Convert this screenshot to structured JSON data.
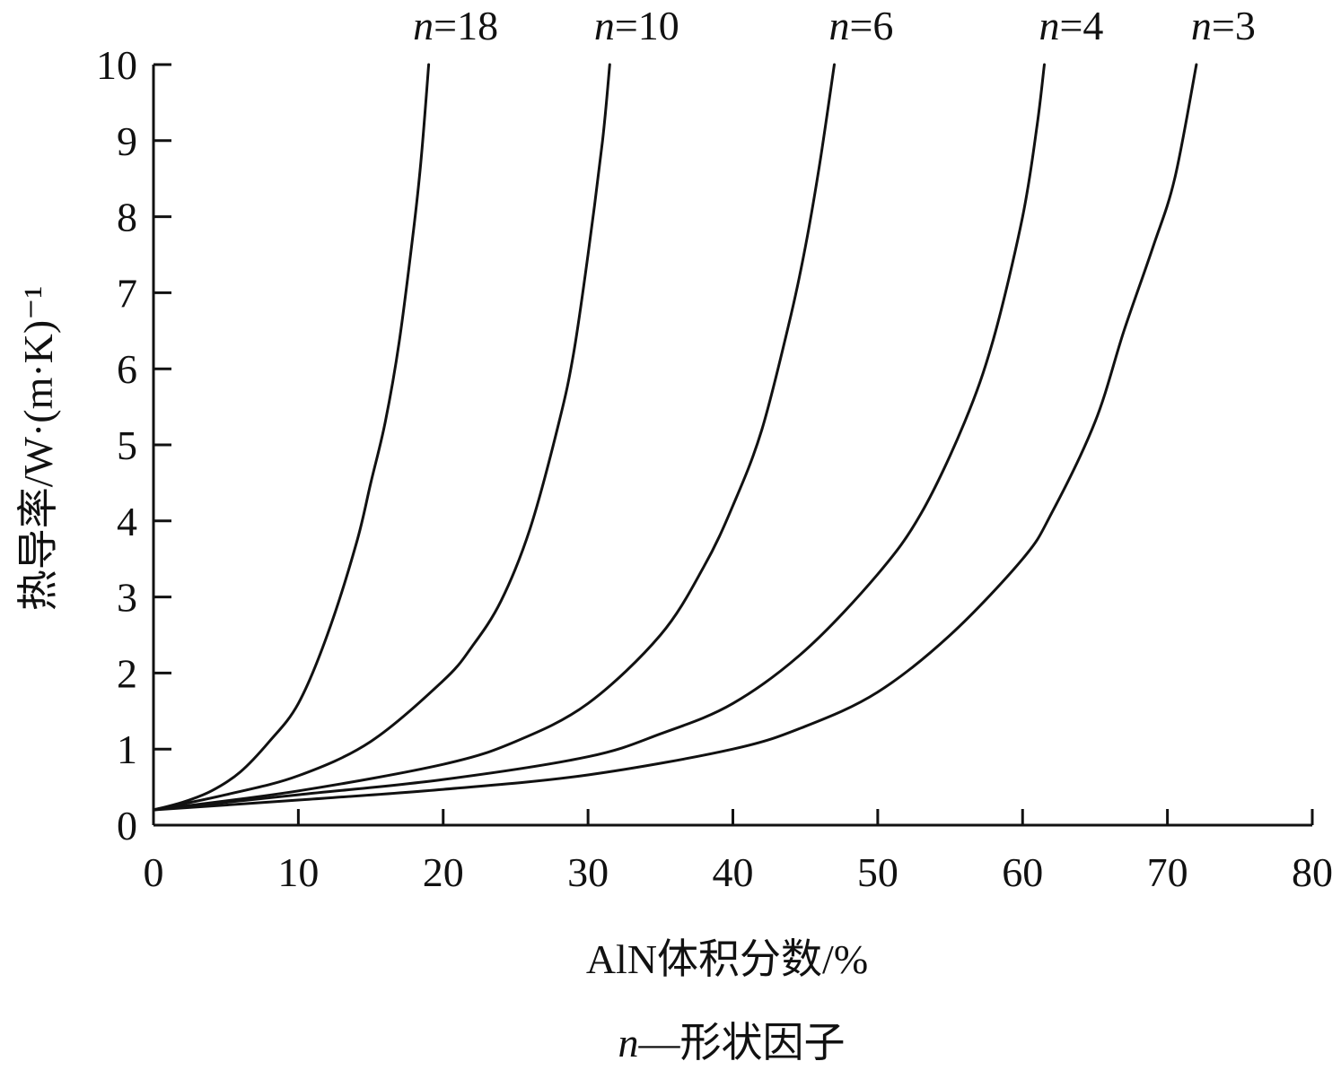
{
  "chart_data": {
    "type": "line",
    "xlabel": "AlN体积分数/%",
    "ylabel": "热导率/W·(m·K)⁻¹",
    "caption_var": "n",
    "caption_text": "—形状因子",
    "xlim": [
      0,
      80
    ],
    "ylim": [
      0,
      10
    ],
    "x_ticks": [
      "0",
      "10",
      "20",
      "30",
      "40",
      "50",
      "60",
      "70",
      "80"
    ],
    "y_ticks": [
      "0",
      "1",
      "2",
      "3",
      "4",
      "5",
      "6",
      "7",
      "8",
      "9",
      "10"
    ],
    "grid": false,
    "line_color": "#111111",
    "series": [
      {
        "name": "n=18",
        "var": "n",
        "value_text": "=18",
        "x": [
          0,
          2,
          4,
          6,
          8,
          10,
          12,
          14,
          15,
          16,
          17,
          18,
          18.5,
          19
        ],
        "y": [
          0.2,
          0.3,
          0.45,
          0.7,
          1.1,
          1.6,
          2.5,
          3.7,
          4.5,
          5.3,
          6.4,
          7.9,
          8.8,
          10
        ]
      },
      {
        "name": "n=10",
        "var": "n",
        "value_text": "=10",
        "x": [
          0,
          5,
          10,
          15,
          20,
          22,
          24,
          26,
          28,
          29,
          30,
          31,
          31.5
        ],
        "y": [
          0.2,
          0.4,
          0.65,
          1.1,
          1.9,
          2.35,
          2.95,
          3.9,
          5.3,
          6.2,
          7.5,
          9.0,
          10
        ]
      },
      {
        "name": "n=6",
        "var": "n",
        "value_text": "=6",
        "x": [
          0,
          10,
          20,
          25,
          30,
          35,
          38,
          40,
          42,
          44,
          45,
          46,
          47
        ],
        "y": [
          0.2,
          0.45,
          0.8,
          1.1,
          1.6,
          2.5,
          3.4,
          4.2,
          5.2,
          6.7,
          7.6,
          8.7,
          10
        ]
      },
      {
        "name": "n=4",
        "var": "n",
        "value_text": "=4",
        "x": [
          0,
          10,
          20,
          30,
          35,
          40,
          45,
          50,
          53,
          56,
          58,
          60,
          61,
          61.5
        ],
        "y": [
          0.2,
          0.4,
          0.6,
          0.9,
          1.2,
          1.6,
          2.3,
          3.3,
          4.1,
          5.3,
          6.4,
          8.0,
          9.2,
          10
        ]
      },
      {
        "name": "n=3",
        "var": "n",
        "value_text": "=3",
        "x": [
          0,
          10,
          20,
          30,
          40,
          45,
          50,
          55,
          60,
          62,
          65,
          67,
          69,
          70.5,
          72
        ],
        "y": [
          0.2,
          0.33,
          0.47,
          0.66,
          1.0,
          1.3,
          1.75,
          2.5,
          3.5,
          4.1,
          5.3,
          6.5,
          7.6,
          8.5,
          10
        ]
      }
    ]
  }
}
